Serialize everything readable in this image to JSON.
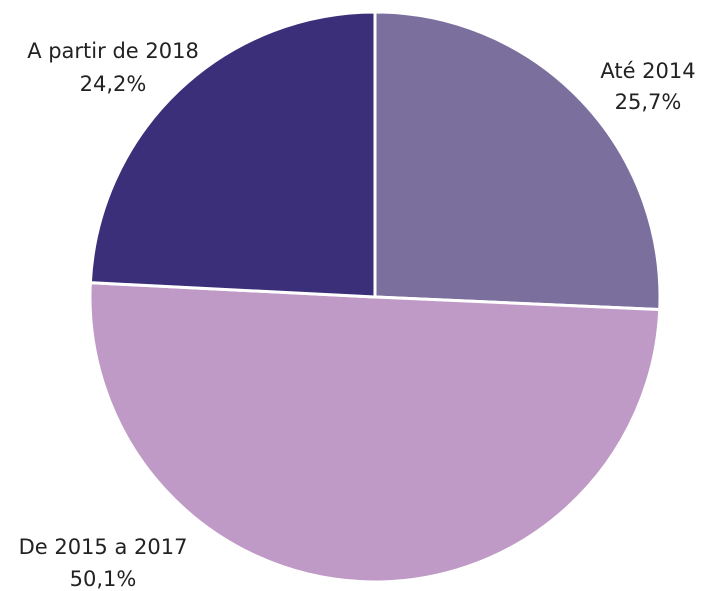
{
  "chart_data": {
    "type": "pie",
    "categories": [
      "Até 2014",
      "De 2015 a 2017",
      "A partir de 2018"
    ],
    "values": [
      25.7,
      50.1,
      24.2
    ],
    "value_labels": [
      "25,7%",
      "50,1%",
      "24,2%"
    ],
    "colors": [
      "#7b6f9e",
      "#bf9ac6",
      "#3b2f7a"
    ]
  }
}
